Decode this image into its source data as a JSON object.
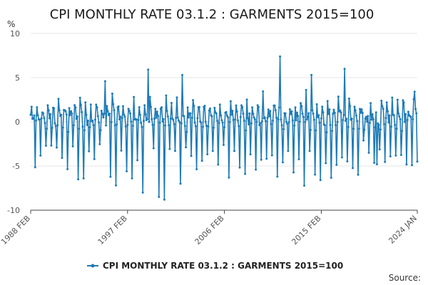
{
  "chart_data": {
    "type": "line",
    "title": "CPI MONTHLY RATE 03.1.2 : GARMENTS 2015=100",
    "ylabel": "%",
    "xlabel": "",
    "ylim": [
      -10,
      10
    ],
    "yticks": [
      10,
      5,
      0,
      -5,
      -10
    ],
    "xlim": [
      "1988 FEB",
      "2024 JAN"
    ],
    "xticks": [
      "1988 FEB",
      "1997 FEB",
      "2006 FEB",
      "2015 FEB",
      "2024 JAN"
    ],
    "grid": "horizontal",
    "legend_position": "bottom",
    "source_label": "Source:",
    "series": [
      {
        "name": "CPI MONTHLY RATE 03.1.2 : GARMENTS 2015=100",
        "color": "#1f7bb6",
        "start": "1988 FEB",
        "end": "2024 JAN",
        "annual_pattern": [
          -4.6,
          -0.3,
          1.8,
          1.2,
          0.4,
          0.2,
          -5.2,
          -0.4,
          2.3,
          1.3,
          0.8,
          0.3
        ],
        "pattern_start_month": "JAN",
        "annotated_values": [
          {
            "date": "1988 FEB",
            "value": 0.8
          },
          {
            "date": "1990 JUL",
            "value": -2.9
          },
          {
            "date": "1993 JAN",
            "value": -6.4
          },
          {
            "date": "1995 JAN",
            "value": 4.6
          },
          {
            "date": "1996 JAN",
            "value": -7.2
          },
          {
            "date": "1998 JUL",
            "value": -8.0
          },
          {
            "date": "1999 JAN",
            "value": 5.9
          },
          {
            "date": "2000 JAN",
            "value": -8.5
          },
          {
            "date": "2000 JUL",
            "value": -8.8
          },
          {
            "date": "2002 JAN",
            "value": -7.0
          },
          {
            "date": "2002 MAR",
            "value": 5.3
          },
          {
            "date": "2004 JAN",
            "value": -4.4
          },
          {
            "date": "2009 JAN",
            "value": -5.4
          },
          {
            "date": "2011 JAN",
            "value": -6.2
          },
          {
            "date": "2011 APR",
            "value": 7.4
          },
          {
            "date": "2014 MAR",
            "value": 5.3
          },
          {
            "date": "2015 JAN",
            "value": -6.6
          },
          {
            "date": "2017 APR",
            "value": 6.0
          },
          {
            "date": "2020 APR",
            "value": -4.8
          },
          {
            "date": "2023 OCT",
            "value": 3.4
          },
          {
            "date": "2024 JAN",
            "value": -4.5
          }
        ]
      }
    ]
  }
}
